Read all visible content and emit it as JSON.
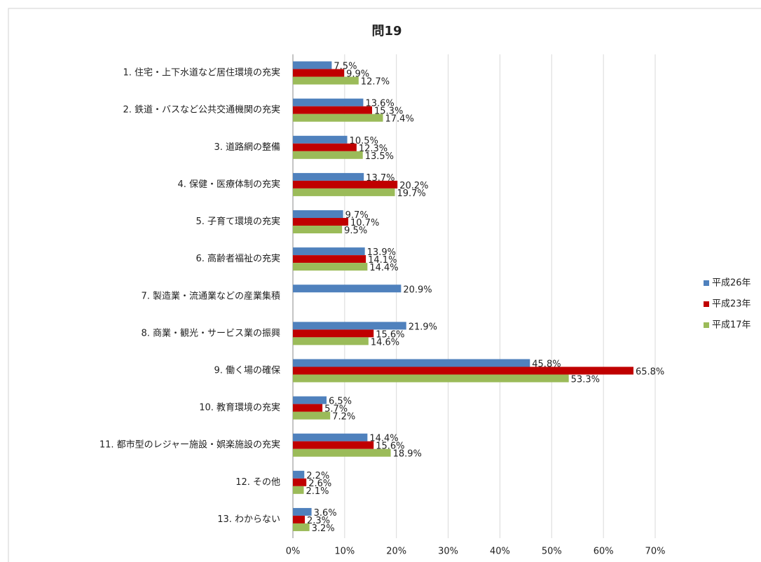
{
  "chart_data": {
    "type": "bar",
    "orientation": "horizontal",
    "title": "問19",
    "categories": [
      "1. 住宅・上下水道など居住環境の充実",
      "2. 鉄道・バスなど公共交通機関の充実",
      "3. 道路網の整備",
      "4. 保健・医療体制の充実",
      "5. 子育て環境の充実",
      "6. 高齢者福祉の充実",
      "7. 製造業・流通業などの産業集積",
      "8. 商業・観光・サービス業の振興",
      "9. 働く場の確保",
      "10. 教育環境の充実",
      "11. 都市型のレジャー施設・娯楽施設の充実",
      "12. その他",
      "13. わからない"
    ],
    "series": [
      {
        "name": "平成26年",
        "color": "#4f81bd",
        "values": [
          7.5,
          13.6,
          10.5,
          13.7,
          9.7,
          13.9,
          20.9,
          21.9,
          45.8,
          6.5,
          14.4,
          2.2,
          3.6
        ],
        "value_labels": [
          "7.5%",
          "13.6%",
          "10.5%",
          "13.7%",
          "9.7%",
          "13.9%",
          "20.9%",
          "21.9%",
          "45.8%",
          "6.5%",
          "14.4%",
          "2.2%",
          "3.6%"
        ]
      },
      {
        "name": "平成23年",
        "color": "#c00000",
        "values": [
          9.9,
          15.3,
          12.3,
          20.2,
          10.7,
          14.1,
          null,
          15.6,
          65.8,
          5.7,
          15.6,
          2.6,
          2.3
        ],
        "value_labels": [
          "9.9%",
          "15.3%",
          "12.3%",
          "20.2%",
          "10.7%",
          "14.1%",
          null,
          "15.6%",
          "65.8%",
          "5.7%",
          "15.6%",
          "2.6%",
          "2.3%"
        ]
      },
      {
        "name": "平成17年",
        "color": "#9bbb59",
        "values": [
          12.7,
          17.4,
          13.5,
          19.7,
          9.5,
          14.4,
          null,
          14.6,
          53.3,
          7.2,
          18.9,
          2.1,
          3.2
        ],
        "value_labels": [
          "12.7%",
          "17.4%",
          "13.5%",
          "19.7%",
          "9.5%",
          "14.4%",
          null,
          "14.6%",
          "53.3%",
          "7.2%",
          "18.9%",
          "2.1%",
          "3.2%"
        ]
      }
    ],
    "xlim": [
      0,
      70
    ],
    "xticks": [
      {
        "value": 0,
        "label": "0%"
      },
      {
        "value": 10,
        "label": "10%"
      },
      {
        "value": 20,
        "label": "20%"
      },
      {
        "value": 30,
        "label": "30%"
      },
      {
        "value": 40,
        "label": "40%"
      },
      {
        "value": 50,
        "label": "50%"
      },
      {
        "value": 60,
        "label": "60%"
      },
      {
        "value": 70,
        "label": "70%"
      }
    ],
    "grid": true,
    "legend": "right"
  }
}
